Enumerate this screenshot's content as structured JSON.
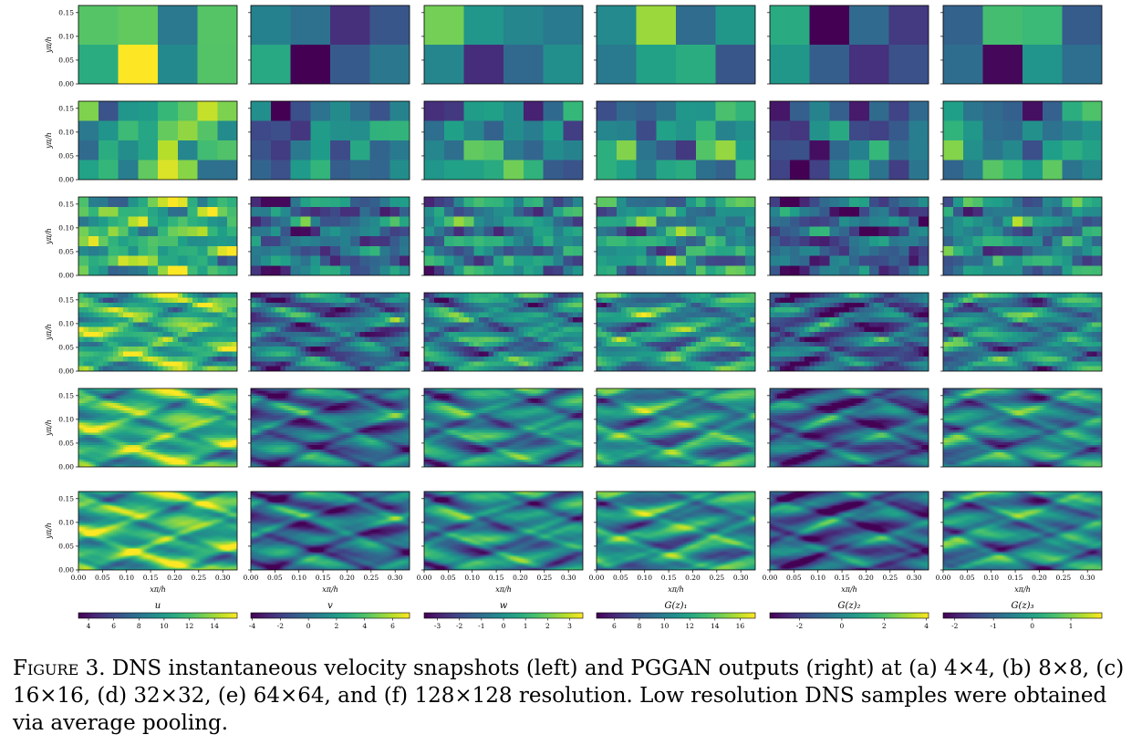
{
  "figure": {
    "columns": [
      {
        "label": "u",
        "ticks": [
          "4",
          "6",
          "8",
          "10",
          "12",
          "14"
        ],
        "range": [
          3.2,
          15.8
        ],
        "seed": 1
      },
      {
        "label": "v",
        "ticks": [
          "-4",
          "-2",
          "0",
          "2",
          "4",
          "6"
        ],
        "range": [
          -4.1,
          7.2
        ],
        "seed": 2
      },
      {
        "label": "w",
        "ticks": [
          "-3",
          "-2",
          "-1",
          "0",
          "1",
          "2",
          "3"
        ],
        "range": [
          -3.6,
          3.6
        ],
        "seed": 3
      },
      {
        "label": "G(z)₁",
        "ticks": [
          "6",
          "8",
          "10",
          "12",
          "14",
          "16"
        ],
        "range": [
          4.6,
          17.2
        ],
        "seed": 4
      },
      {
        "label": "G(z)₂",
        "ticks": [
          "-2",
          "0",
          "2",
          "4"
        ],
        "range": [
          -3.4,
          4.1
        ],
        "seed": 5
      },
      {
        "label": "G(z)₃",
        "ticks": [
          "-2",
          "-1",
          "0",
          "1"
        ],
        "range": [
          -2.3,
          1.8
        ],
        "seed": 6
      }
    ],
    "rows": [
      {
        "resolution": "4×4",
        "nx": 4,
        "ny": 4
      },
      {
        "resolution": "8×8",
        "nx": 8,
        "ny": 8
      },
      {
        "resolution": "16×16",
        "nx": 16,
        "ny": 16
      },
      {
        "resolution": "32×32",
        "nx": 32,
        "ny": 32
      },
      {
        "resolution": "64×64",
        "nx": 64,
        "ny": 64
      },
      {
        "resolution": "128×128",
        "nx": 128,
        "ny": 128
      }
    ],
    "y_axis": {
      "label": "yπ/h",
      "ticks": [
        "0.00",
        "0.05",
        "0.10",
        "0.15"
      ],
      "range": [
        0,
        0.165
      ]
    },
    "x_axis": {
      "label": "xπ/h",
      "ticks": [
        "0.00",
        "0.05",
        "0.10",
        "0.15",
        "0.20",
        "0.25",
        "0.30"
      ],
      "range": [
        0,
        0.33
      ]
    },
    "colormap": "viridis"
  },
  "caption": {
    "label": "Figure 3.",
    "text": "DNS instantaneous velocity snapshots (left) and PGGAN outputs (right) at (a) 4×4, (b) 8×8, (c) 16×16, (d) 32×32, (e) 64×64, and (f) 128×128 resolution. Low resolution DNS samples were obtained via average pooling."
  }
}
